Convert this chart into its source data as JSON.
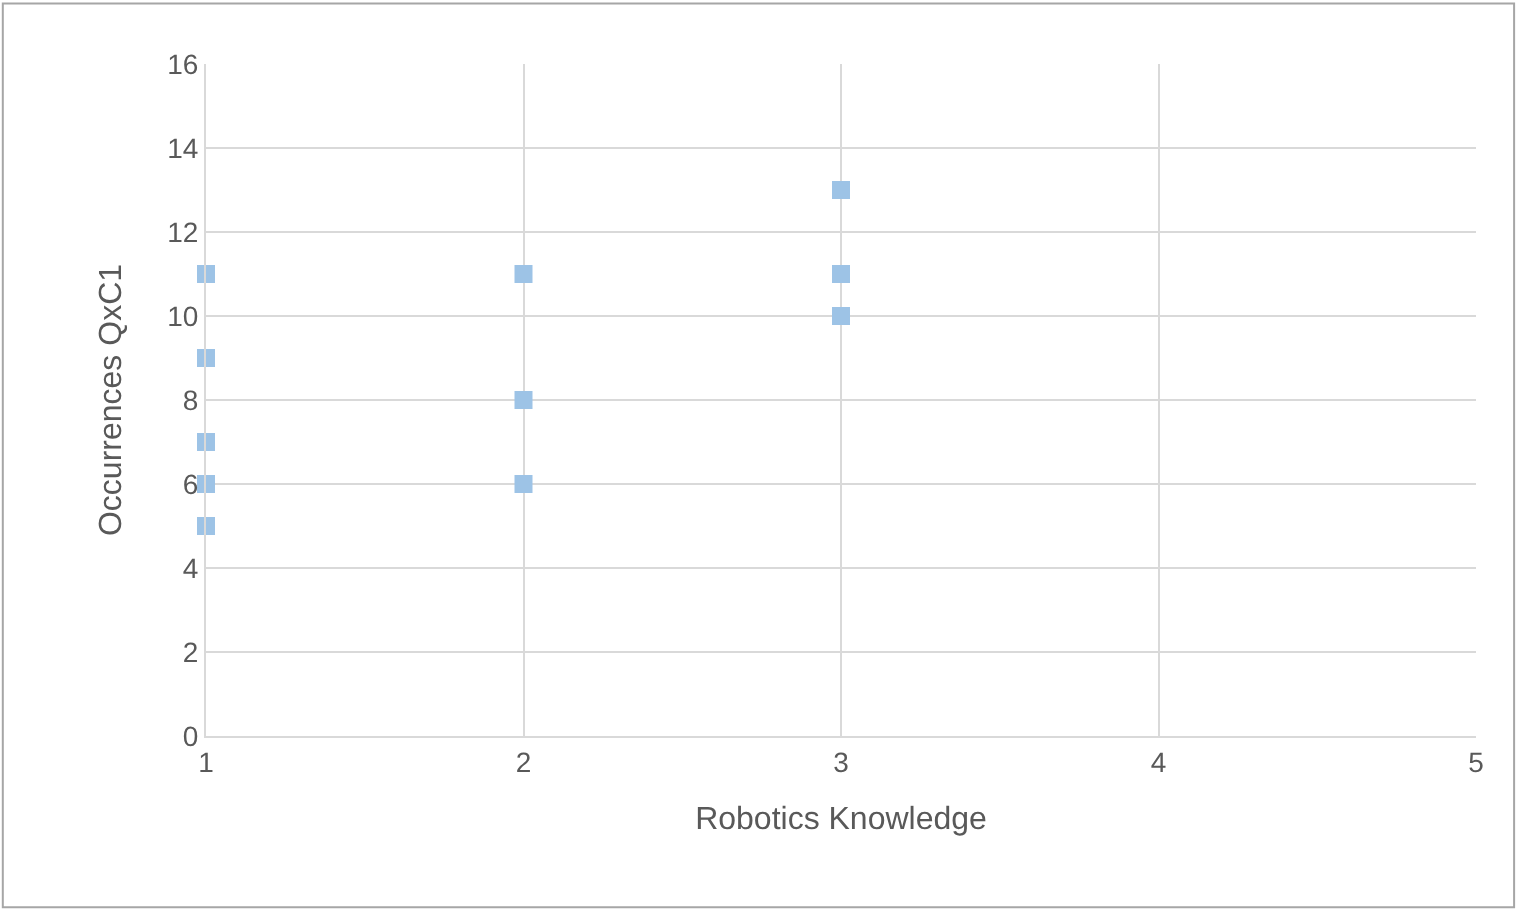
{
  "chart_data": {
    "type": "scatter",
    "xlabel": "Robotics Knowledge",
    "ylabel": "Occurrences QxC1",
    "series": [
      {
        "color": "#9dc3e6",
        "x": [
          1,
          1,
          1,
          1,
          1,
          2,
          2,
          2,
          3,
          3,
          3
        ],
        "values": [
          11,
          9,
          7,
          6,
          5,
          11,
          8,
          6,
          13,
          11,
          10
        ]
      }
    ],
    "xlim": [
      1,
      5
    ],
    "xticks": [
      1,
      2,
      3,
      4,
      5
    ],
    "ylim": [
      0,
      16
    ],
    "yticks": [
      0,
      2,
      4,
      6,
      8,
      10,
      12,
      14,
      16
    ],
    "grid": true,
    "marker": "square"
  }
}
